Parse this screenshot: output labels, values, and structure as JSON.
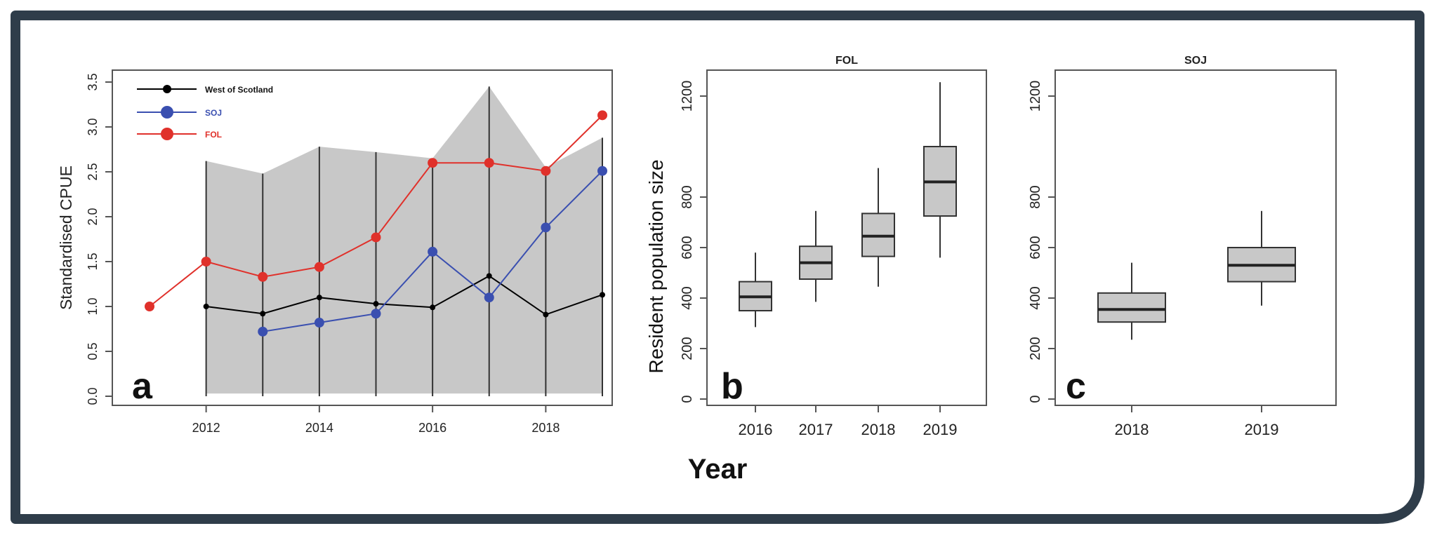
{
  "chart_data": [
    {
      "type": "line",
      "panel_label": "a",
      "title": "",
      "xlabel": "",
      "ylabel": "Standardised CPUE",
      "xlim": [
        2011,
        2019
      ],
      "ylim": [
        0,
        3.5
      ],
      "x_ticks": [
        2012,
        2014,
        2016,
        2018
      ],
      "y_ticks": [
        0.0,
        0.5,
        1.0,
        1.5,
        2.0,
        2.5,
        3.0,
        3.5
      ],
      "y_tick_labels": [
        "0.0",
        "0.5",
        "1.0",
        "1.5",
        "2.0",
        "2.5",
        "3.0",
        "3.5"
      ],
      "legend_position": "top-left",
      "confidence_band": {
        "x": [
          2012,
          2013,
          2014,
          2015,
          2016,
          2017,
          2018,
          2019
        ],
        "upper": [
          2.62,
          2.48,
          2.78,
          2.72,
          2.65,
          3.45,
          2.55,
          2.88
        ],
        "lower": [
          0.03,
          0.03,
          0.03,
          0.03,
          0.03,
          0.03,
          0.03,
          0.03
        ]
      },
      "series": [
        {
          "name": "West of Scotland",
          "color": "#000000",
          "marker_size": "small",
          "x": [
            2012,
            2013,
            2014,
            2015,
            2016,
            2017,
            2018,
            2019
          ],
          "y": [
            1.0,
            0.92,
            1.1,
            1.03,
            0.99,
            1.34,
            0.91,
            1.13
          ]
        },
        {
          "name": "SOJ",
          "color": "#3a4fb0",
          "marker_size": "large",
          "x": [
            2013,
            2014,
            2015,
            2016,
            2017,
            2018,
            2019
          ],
          "y": [
            0.72,
            0.82,
            0.92,
            1.61,
            1.1,
            1.88,
            2.51
          ]
        },
        {
          "name": "FOL",
          "color": "#e0312b",
          "marker_size": "large",
          "x": [
            2011,
            2012,
            2013,
            2014,
            2015,
            2016,
            2017,
            2018,
            2019
          ],
          "y": [
            1.0,
            1.5,
            1.33,
            1.44,
            1.77,
            2.6,
            2.6,
            2.51,
            3.13
          ]
        }
      ]
    },
    {
      "type": "box",
      "panel_label": "b",
      "title": "FOL",
      "ylabel": "Resident population size",
      "ylim": [
        0,
        1300
      ],
      "y_ticks": [
        0,
        200,
        400,
        600,
        800,
        1200
      ],
      "categories": [
        "2016",
        "2017",
        "2018",
        "2019"
      ],
      "boxes": [
        {
          "whisker_low": 285,
          "q1": 350,
          "median": 405,
          "q3": 465,
          "whisker_high": 580
        },
        {
          "whisker_low": 385,
          "q1": 475,
          "median": 540,
          "q3": 605,
          "whisker_high": 745
        },
        {
          "whisker_low": 445,
          "q1": 565,
          "median": 645,
          "q3": 735,
          "whisker_high": 915
        },
        {
          "whisker_low": 560,
          "q1": 725,
          "median": 860,
          "q3": 1000,
          "whisker_high": 1255
        }
      ]
    },
    {
      "type": "box",
      "panel_label": "c",
      "title": "SOJ",
      "ylabel": "",
      "ylim": [
        0,
        1300
      ],
      "y_ticks": [
        0,
        200,
        400,
        600,
        800,
        1200
      ],
      "categories": [
        "2018",
        "2019"
      ],
      "boxes": [
        {
          "whisker_low": 235,
          "q1": 305,
          "median": 355,
          "q3": 420,
          "whisker_high": 540
        },
        {
          "whisker_low": 370,
          "q1": 465,
          "median": 530,
          "q3": 600,
          "whisker_high": 745
        }
      ]
    }
  ],
  "shared": {
    "xlabel": "Year"
  },
  "colors": {
    "frame": "#2f3d4a",
    "band": "#c8c8c8",
    "box_fill": "#c8c8c8"
  }
}
